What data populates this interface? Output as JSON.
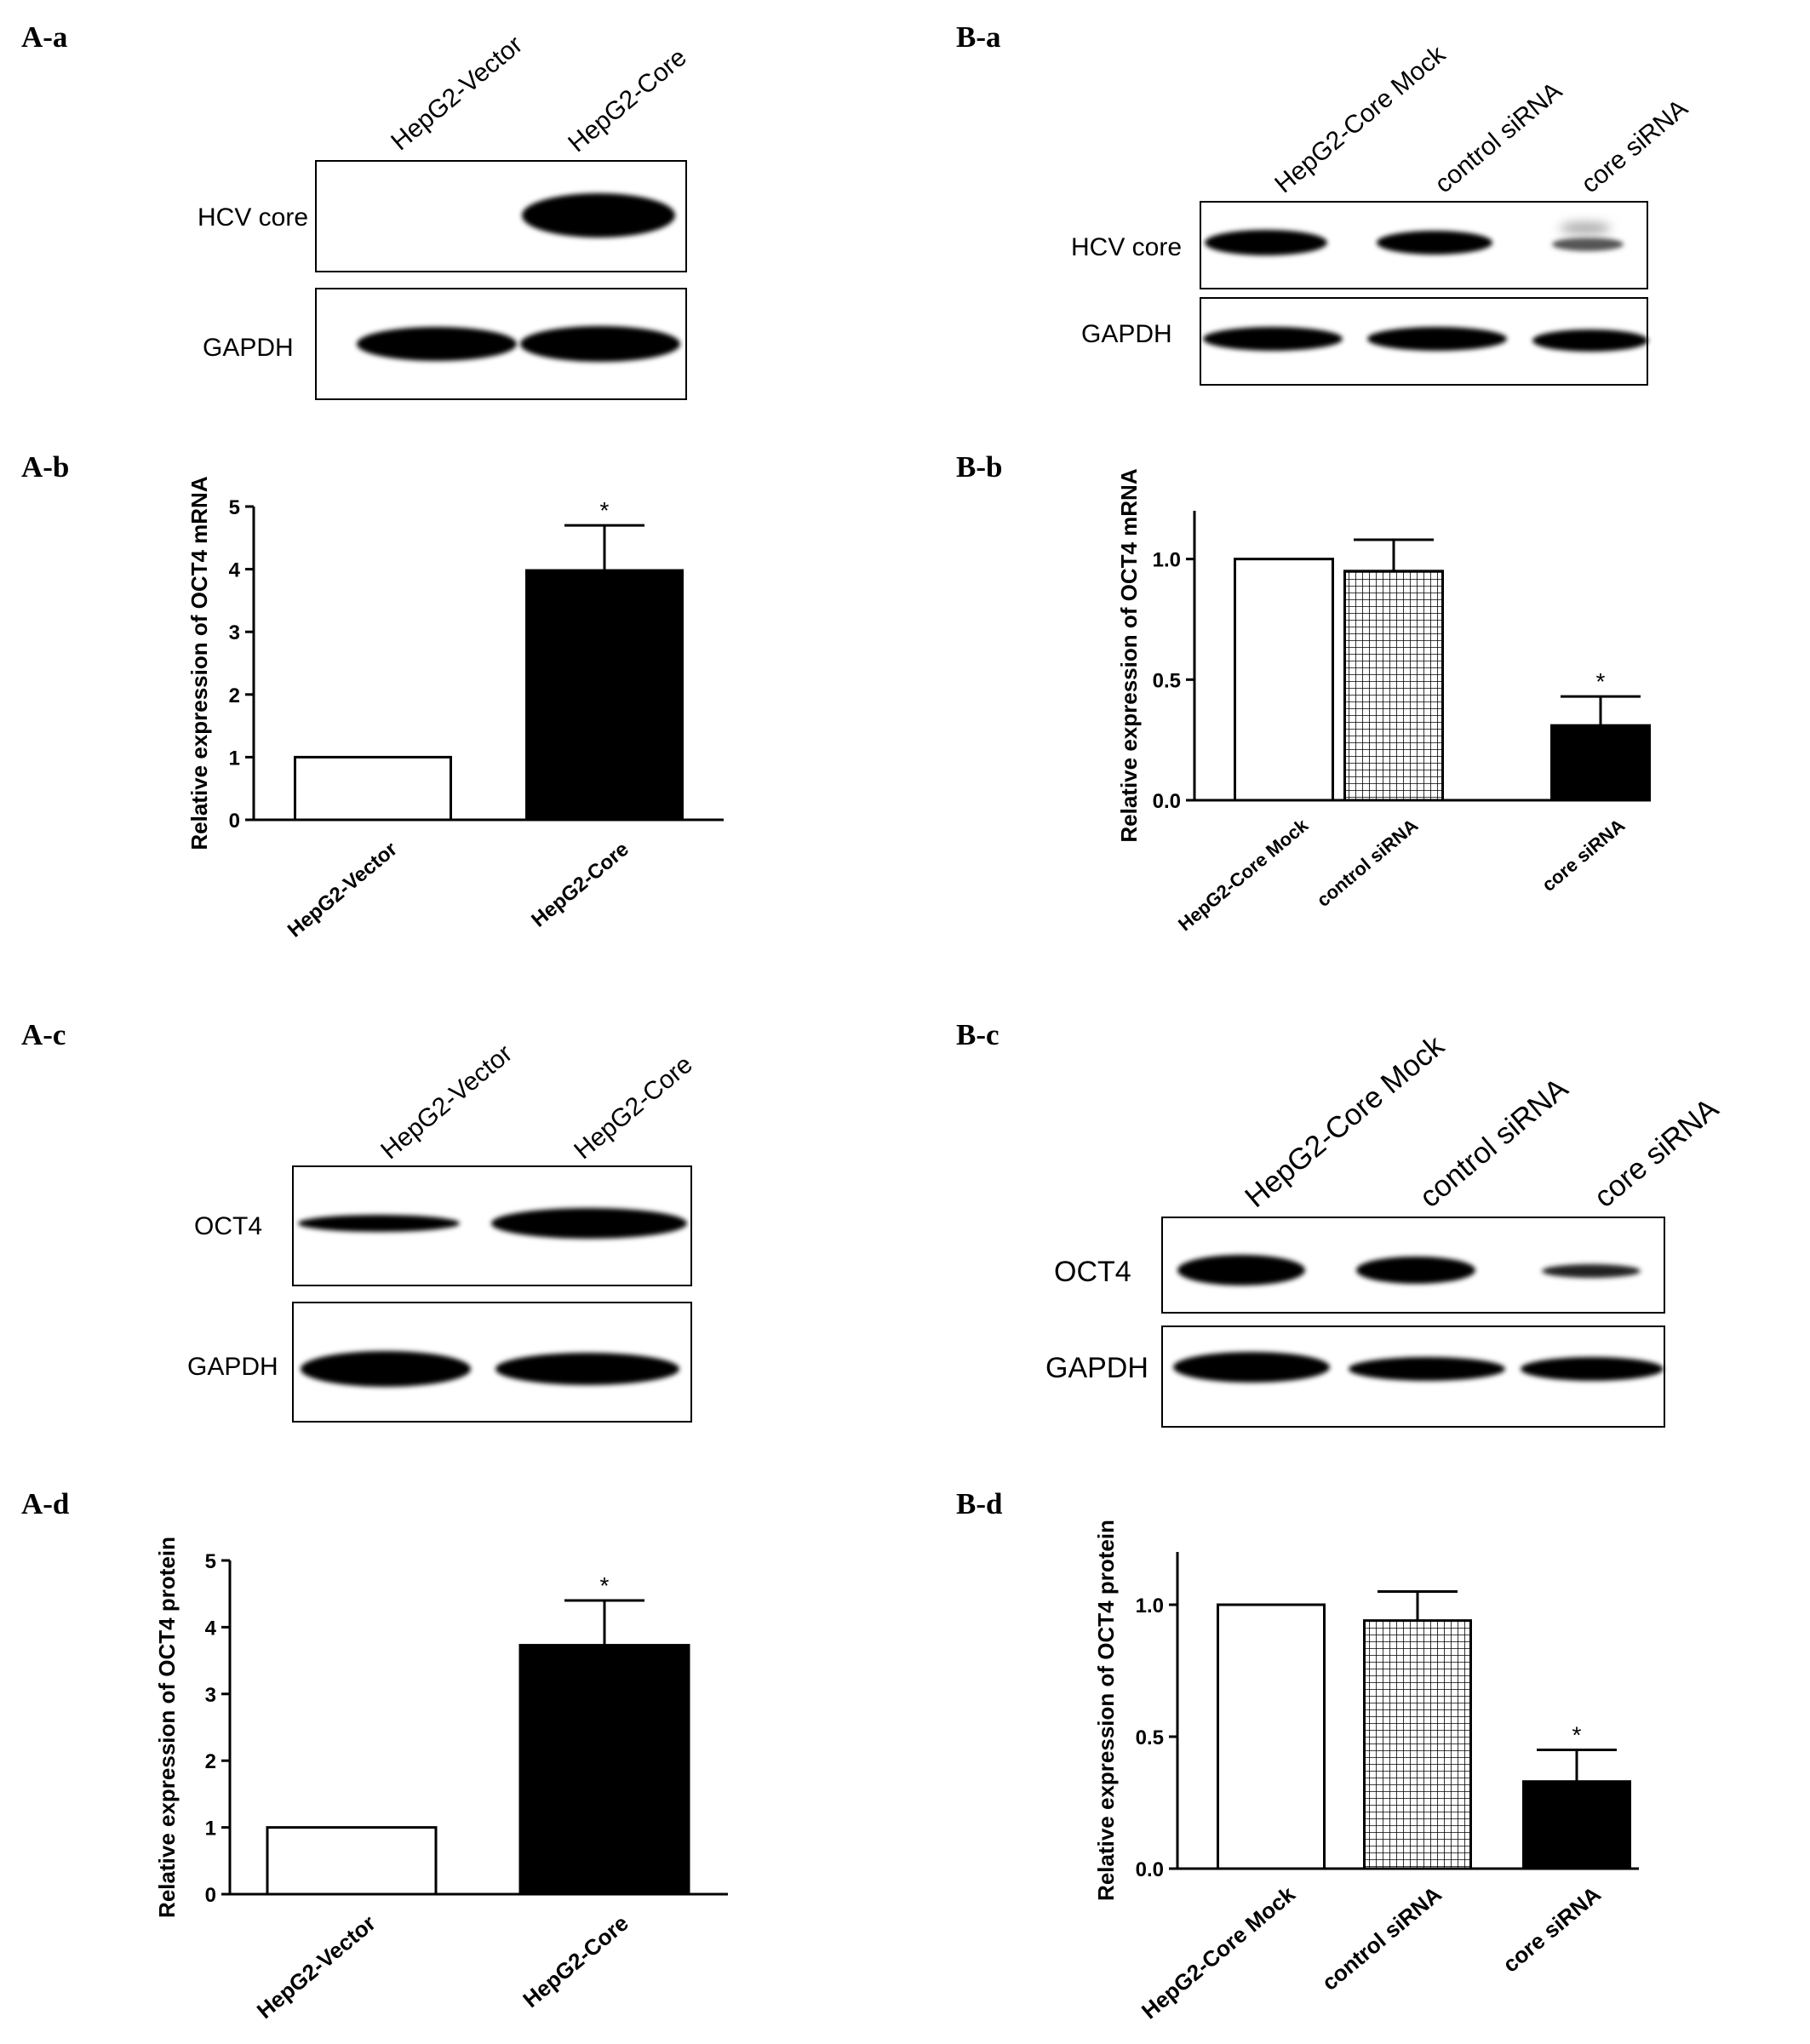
{
  "panels": {
    "Aa": {
      "label": "A-a",
      "lanes": [
        "HepG2-Vector",
        "HepG2-Core"
      ],
      "rows": [
        "HCV core",
        "GAPDH"
      ]
    },
    "Ba": {
      "label": "B-a",
      "lanes": [
        "HepG2-Core Mock",
        "control siRNA",
        "core siRNA"
      ],
      "rows": [
        "HCV core",
        "GAPDH"
      ]
    },
    "Ac": {
      "label": "A-c",
      "lanes": [
        "HepG2-Vector",
        "HepG2-Core"
      ],
      "rows": [
        "OCT4",
        "GAPDH"
      ]
    },
    "Bc": {
      "label": "B-c",
      "lanes": [
        "HepG2-Core Mock",
        "control siRNA",
        "core siRNA"
      ],
      "rows": [
        "OCT4",
        "GAPDH"
      ]
    }
  },
  "chart_data": [
    {
      "id": "Ab",
      "panel_label": "A-b",
      "type": "bar",
      "ylabel": "Relative expression of OCT4 mRNA",
      "categories": [
        "HepG2-Vector",
        "HepG2-Core"
      ],
      "values": [
        1.0,
        3.98
      ],
      "errors": [
        0,
        0.72
      ],
      "significance": [
        "",
        "*"
      ],
      "ylim": [
        0,
        5
      ],
      "yticks": [
        "0",
        "1",
        "2",
        "3",
        "4",
        "5"
      ],
      "fills": [
        "white",
        "black"
      ]
    },
    {
      "id": "Bb",
      "panel_label": "B-b",
      "type": "bar",
      "ylabel": "Relative expression of OCT4 mRNA",
      "categories": [
        "HepG2-Core Mock",
        "control siRNA",
        "core siRNA"
      ],
      "values": [
        1.0,
        0.95,
        0.31
      ],
      "errors": [
        0,
        0.13,
        0.12
      ],
      "significance": [
        "",
        "",
        "*"
      ],
      "ylim": [
        0,
        1.2
      ],
      "yticks": [
        "0.0",
        "0.5",
        "1.0"
      ],
      "fills": [
        "white",
        "grid",
        "black"
      ]
    },
    {
      "id": "Ad",
      "panel_label": "A-d",
      "type": "bar",
      "ylabel": "Relative expression of OCT4 protein",
      "categories": [
        "HepG2-Vector",
        "HepG2-Core"
      ],
      "values": [
        1.0,
        3.73
      ],
      "errors": [
        0,
        0.67
      ],
      "significance": [
        "",
        "*"
      ],
      "ylim": [
        0,
        5
      ],
      "yticks": [
        "0",
        "1",
        "2",
        "3",
        "4",
        "5"
      ],
      "fills": [
        "white",
        "black"
      ]
    },
    {
      "id": "Bd",
      "panel_label": "B-d",
      "type": "bar",
      "ylabel": "Relative expression of OCT4 protein",
      "categories": [
        "HepG2-Core Mock",
        "control siRNA",
        "core siRNA"
      ],
      "values": [
        1.0,
        0.94,
        0.33
      ],
      "errors": [
        0,
        0.11,
        0.12
      ],
      "significance": [
        "",
        "",
        "*"
      ],
      "ylim": [
        0,
        1.2
      ],
      "yticks": [
        "0.0",
        "0.5",
        "1.0"
      ],
      "fills": [
        "white",
        "grid",
        "black"
      ]
    }
  ]
}
